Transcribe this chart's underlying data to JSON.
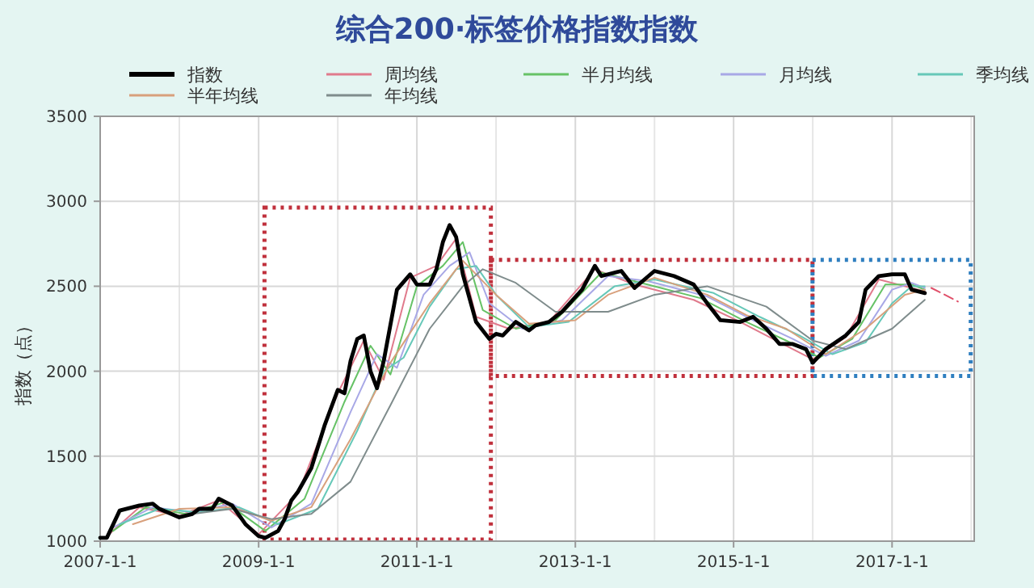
{
  "chart_data": {
    "type": "line",
    "title": "综合200·标签价格指数指数",
    "ylabel": "指数（点）",
    "xlim": [
      "2007-01-01",
      "2018-01-15"
    ],
    "ylim": [
      1000,
      3500
    ],
    "xticks": [
      {
        "value": "2007-01-01",
        "label": "2007-1-1"
      },
      {
        "value": "2009-01-01",
        "label": "2009-1-1"
      },
      {
        "value": "2011-01-01",
        "label": "2011-1-1"
      },
      {
        "value": "2013-01-01",
        "label": "2013-1-1"
      },
      {
        "value": "2015-01-01",
        "label": "2015-1-1"
      },
      {
        "value": "2017-01-01",
        "label": "2017-1-1"
      }
    ],
    "yticks": [
      1000,
      1500,
      2000,
      2500,
      3000,
      3500
    ],
    "grid": true,
    "legend": "top",
    "marker": "none",
    "series": [
      {
        "name": "指数",
        "color": "#000000",
        "x": [
          "2007-01",
          "2007-02",
          "2007-04",
          "2007-07",
          "2007-09",
          "2007-10",
          "2008-01",
          "2008-03",
          "2008-04",
          "2008-06",
          "2008-07",
          "2008-09",
          "2008-11",
          "2009-01",
          "2009-02",
          "2009-04",
          "2009-05",
          "2009-06",
          "2009-07",
          "2009-09",
          "2009-11",
          "2010-01",
          "2010-02",
          "2010-03",
          "2010-04",
          "2010-05",
          "2010-06",
          "2010-07",
          "2010-08",
          "2010-10",
          "2010-12",
          "2011-01",
          "2011-03",
          "2011-04",
          "2011-05",
          "2011-06",
          "2011-07",
          "2011-08",
          "2011-10",
          "2011-12",
          "2012-01",
          "2012-02",
          "2012-04",
          "2012-06",
          "2012-07",
          "2012-09",
          "2012-11",
          "2013-02",
          "2013-04",
          "2013-05",
          "2013-08",
          "2013-10",
          "2014-01",
          "2014-04",
          "2014-07",
          "2014-09",
          "2014-11",
          "2015-02",
          "2015-04",
          "2015-06",
          "2015-08",
          "2015-10",
          "2015-12",
          "2016-01",
          "2016-03",
          "2016-06",
          "2016-08",
          "2016-09",
          "2016-11",
          "2017-01",
          "2017-03",
          "2017-04",
          "2017-06"
        ],
        "values": [
          1020,
          1020,
          1180,
          1210,
          1220,
          1190,
          1140,
          1160,
          1190,
          1190,
          1250,
          1210,
          1100,
          1030,
          1020,
          1060,
          1130,
          1240,
          1290,
          1430,
          1680,
          1890,
          1870,
          2060,
          2190,
          2210,
          2000,
          1900,
          2060,
          2480,
          2570,
          2510,
          2510,
          2600,
          2760,
          2860,
          2790,
          2570,
          2290,
          2190,
          2220,
          2210,
          2290,
          2240,
          2270,
          2290,
          2350,
          2480,
          2620,
          2560,
          2590,
          2490,
          2590,
          2560,
          2510,
          2400,
          2300,
          2290,
          2320,
          2250,
          2160,
          2160,
          2130,
          2050,
          2130,
          2210,
          2290,
          2480,
          2560,
          2570,
          2570,
          2480,
          2460
        ]
      },
      {
        "name": "周均线",
        "color": "#e07a8c",
        "x": [
          "2007-02",
          "2007-07",
          "2008-01",
          "2008-07",
          "2009-01",
          "2009-07",
          "2010-01",
          "2010-05",
          "2010-08",
          "2010-12",
          "2011-04",
          "2011-07",
          "2011-10",
          "2012-03",
          "2012-09",
          "2013-04",
          "2013-10",
          "2014-07",
          "2015-02",
          "2015-08",
          "2016-01",
          "2016-06",
          "2016-11",
          "2017-03",
          "2017-06"
        ],
        "values": [
          1030,
          1200,
          1150,
          1240,
          1040,
          1280,
          1870,
          2180,
          1950,
          2550,
          2620,
          2780,
          2320,
          2250,
          2290,
          2600,
          2510,
          2420,
          2290,
          2170,
          2070,
          2200,
          2540,
          2500,
          2470
        ]
      },
      {
        "name": "半月均线",
        "color": "#66c266",
        "x": [
          "2007-03",
          "2007-08",
          "2008-02",
          "2008-08",
          "2009-02",
          "2009-08",
          "2010-02",
          "2010-06",
          "2010-09",
          "2011-01",
          "2011-05",
          "2011-08",
          "2011-11",
          "2012-04",
          "2012-10",
          "2013-05",
          "2013-11",
          "2014-08",
          "2015-03",
          "2015-09",
          "2016-02",
          "2016-07",
          "2016-12",
          "2017-04",
          "2017-06"
        ],
        "values": [
          1060,
          1200,
          1160,
          1230,
          1060,
          1250,
          1820,
          2150,
          1980,
          2500,
          2620,
          2760,
          2360,
          2250,
          2300,
          2580,
          2520,
          2430,
          2290,
          2180,
          2080,
          2190,
          2510,
          2510,
          2480
        ]
      },
      {
        "name": "月均线",
        "color": "#a8a8e6",
        "x": [
          "2007-03",
          "2007-09",
          "2008-03",
          "2008-09",
          "2009-03",
          "2009-09",
          "2010-03",
          "2010-07",
          "2010-10",
          "2011-02",
          "2011-06",
          "2011-09",
          "2011-12",
          "2012-05",
          "2012-11",
          "2013-06",
          "2013-12",
          "2014-09",
          "2015-04",
          "2015-10",
          "2016-03",
          "2016-08",
          "2017-01",
          "2017-04",
          "2017-06"
        ],
        "values": [
          1080,
          1200,
          1170,
          1220,
          1080,
          1220,
          1760,
          2100,
          2020,
          2450,
          2620,
          2700,
          2400,
          2250,
          2300,
          2560,
          2530,
          2440,
          2300,
          2190,
          2090,
          2180,
          2480,
          2520,
          2490
        ]
      },
      {
        "name": "季均线",
        "color": "#66c8b8",
        "x": [
          "2007-04",
          "2007-10",
          "2008-04",
          "2008-10",
          "2009-04",
          "2009-10",
          "2010-04",
          "2010-08",
          "2010-11",
          "2011-03",
          "2011-07",
          "2011-10",
          "2012-01",
          "2012-06",
          "2012-12",
          "2013-07",
          "2014-01",
          "2014-10",
          "2015-05",
          "2015-11",
          "2016-04",
          "2016-09",
          "2017-01",
          "2017-04",
          "2017-06"
        ],
        "values": [
          1100,
          1190,
          1170,
          1200,
          1100,
          1190,
          1650,
          2000,
          2080,
          2380,
          2600,
          2620,
          2450,
          2260,
          2290,
          2500,
          2540,
          2460,
          2320,
          2210,
          2100,
          2170,
          2400,
          2500,
          2500
        ]
      },
      {
        "name": "半年均线",
        "color": "#d8a07c",
        "x": [
          "2007-06",
          "2008-01",
          "2008-09",
          "2009-03",
          "2009-09",
          "2010-03",
          "2010-09",
          "2011-03",
          "2011-08",
          "2012-01",
          "2012-06",
          "2013-01",
          "2013-06",
          "2014-01",
          "2014-09",
          "2015-03",
          "2015-09",
          "2016-03",
          "2016-09",
          "2017-03",
          "2017-06"
        ],
        "values": [
          1100,
          1190,
          1200,
          1120,
          1200,
          1600,
          2050,
          2400,
          2650,
          2450,
          2280,
          2300,
          2450,
          2550,
          2450,
          2330,
          2250,
          2100,
          2250,
          2450,
          2480
        ]
      },
      {
        "name": "年均线",
        "color": "#7f8c8c",
        "x": [
          "2008-01",
          "2008-09",
          "2009-03",
          "2009-09",
          "2010-03",
          "2010-09",
          "2011-03",
          "2011-08",
          "2011-11",
          "2012-04",
          "2012-10",
          "2013-06",
          "2014-01",
          "2014-09",
          "2015-06",
          "2016-01",
          "2016-06",
          "2017-01",
          "2017-06"
        ],
        "values": [
          1150,
          1190,
          1130,
          1160,
          1350,
          1800,
          2250,
          2500,
          2600,
          2520,
          2350,
          2350,
          2450,
          2500,
          2380,
          2180,
          2130,
          2250,
          2420
        ]
      },
      {
        "color": "#e0506a",
        "line_style": "dashed",
        "x": [
          "2017-07",
          "2017-09",
          "2017-11"
        ],
        "values": [
          2490,
          2450,
          2410
        ]
      }
    ]
  }
}
